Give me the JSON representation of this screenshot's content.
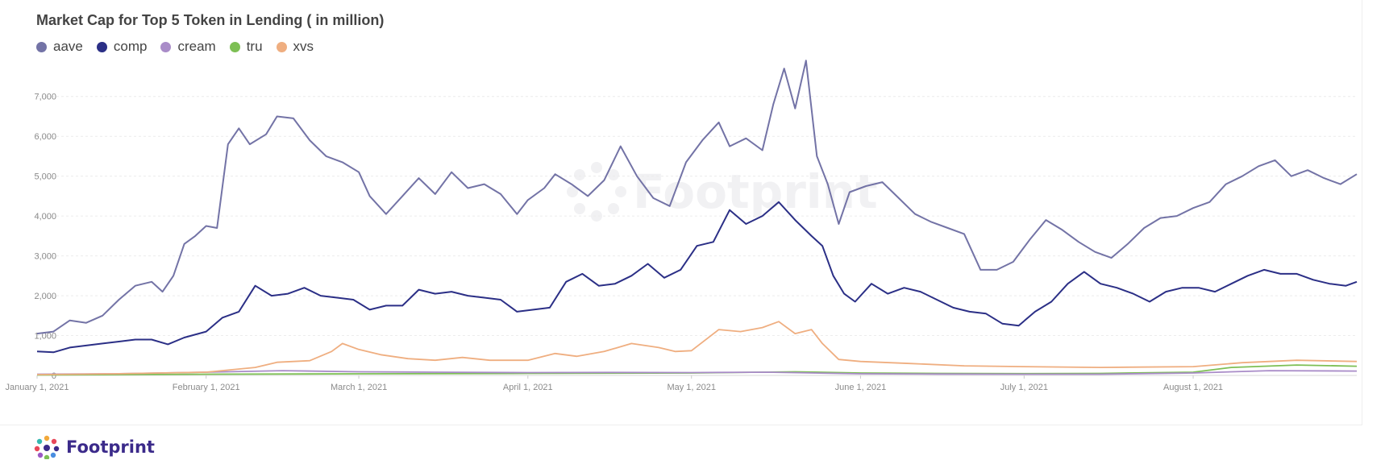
{
  "chart_data": {
    "type": "line",
    "title": "Market Cap for Top 5 Token in Lending ( in million)",
    "xlabel": "",
    "ylabel": "",
    "x_range": [
      "2021-01-01",
      "2021-08-31"
    ],
    "ylim": [
      0,
      7500
    ],
    "y_ticks": [
      0,
      1000,
      2000,
      3000,
      4000,
      5000,
      6000,
      7000
    ],
    "y_tick_labels": [
      "0",
      "1,000",
      "2,000",
      "3,000",
      "4,000",
      "5,000",
      "6,000",
      "7,000"
    ],
    "x_ticks": [
      {
        "date": "2021-01-01",
        "label": "January 1, 2021"
      },
      {
        "date": "2021-02-01",
        "label": "February 1, 2021"
      },
      {
        "date": "2021-03-01",
        "label": "March 1, 2021"
      },
      {
        "date": "2021-04-01",
        "label": "April 1, 2021"
      },
      {
        "date": "2021-05-01",
        "label": "May 1, 2021"
      },
      {
        "date": "2021-06-01",
        "label": "June 1, 2021"
      },
      {
        "date": "2021-07-01",
        "label": "July 1, 2021"
      },
      {
        "date": "2021-08-01",
        "label": "August 1, 2021"
      }
    ],
    "grid": "horizontal-dashed",
    "legend_position": "top-left",
    "series": [
      {
        "name": "aave",
        "color": "#7373a6",
        "points": [
          [
            "2021-01-01",
            1050
          ],
          [
            "2021-01-04",
            1100
          ],
          [
            "2021-01-07",
            1380
          ],
          [
            "2021-01-10",
            1320
          ],
          [
            "2021-01-13",
            1500
          ],
          [
            "2021-01-16",
            1900
          ],
          [
            "2021-01-19",
            2250
          ],
          [
            "2021-01-22",
            2350
          ],
          [
            "2021-01-24",
            2100
          ],
          [
            "2021-01-26",
            2500
          ],
          [
            "2021-01-28",
            3300
          ],
          [
            "2021-01-30",
            3500
          ],
          [
            "2021-02-01",
            3750
          ],
          [
            "2021-02-03",
            3700
          ],
          [
            "2021-02-05",
            5800
          ],
          [
            "2021-02-07",
            6200
          ],
          [
            "2021-02-09",
            5800
          ],
          [
            "2021-02-12",
            6050
          ],
          [
            "2021-02-14",
            6500
          ],
          [
            "2021-02-17",
            6450
          ],
          [
            "2021-02-20",
            5900
          ],
          [
            "2021-02-23",
            5500
          ],
          [
            "2021-02-26",
            5350
          ],
          [
            "2021-03-01",
            5100
          ],
          [
            "2021-03-03",
            4500
          ],
          [
            "2021-03-06",
            4050
          ],
          [
            "2021-03-09",
            4500
          ],
          [
            "2021-03-12",
            4950
          ],
          [
            "2021-03-15",
            4550
          ],
          [
            "2021-03-18",
            5100
          ],
          [
            "2021-03-21",
            4700
          ],
          [
            "2021-03-24",
            4800
          ],
          [
            "2021-03-27",
            4550
          ],
          [
            "2021-03-30",
            4050
          ],
          [
            "2021-04-01",
            4400
          ],
          [
            "2021-04-04",
            4700
          ],
          [
            "2021-04-06",
            5050
          ],
          [
            "2021-04-09",
            4800
          ],
          [
            "2021-04-12",
            4500
          ],
          [
            "2021-04-15",
            4900
          ],
          [
            "2021-04-18",
            5750
          ],
          [
            "2021-04-21",
            5000
          ],
          [
            "2021-04-24",
            4450
          ],
          [
            "2021-04-27",
            4250
          ],
          [
            "2021-04-30",
            5350
          ],
          [
            "2021-05-03",
            5900
          ],
          [
            "2021-05-06",
            6350
          ],
          [
            "2021-05-08",
            5750
          ],
          [
            "2021-05-11",
            5950
          ],
          [
            "2021-05-14",
            5650
          ],
          [
            "2021-05-16",
            6800
          ],
          [
            "2021-05-18",
            7700
          ],
          [
            "2021-05-20",
            6700
          ],
          [
            "2021-05-22",
            7900
          ],
          [
            "2021-05-24",
            5500
          ],
          [
            "2021-05-26",
            4800
          ],
          [
            "2021-05-28",
            3800
          ],
          [
            "2021-05-30",
            4600
          ],
          [
            "2021-06-02",
            4750
          ],
          [
            "2021-06-05",
            4850
          ],
          [
            "2021-06-08",
            4450
          ],
          [
            "2021-06-11",
            4050
          ],
          [
            "2021-06-14",
            3850
          ],
          [
            "2021-06-17",
            3700
          ],
          [
            "2021-06-20",
            3550
          ],
          [
            "2021-06-23",
            2650
          ],
          [
            "2021-06-26",
            2650
          ],
          [
            "2021-06-29",
            2850
          ],
          [
            "2021-07-02",
            3400
          ],
          [
            "2021-07-05",
            3900
          ],
          [
            "2021-07-08",
            3650
          ],
          [
            "2021-07-11",
            3350
          ],
          [
            "2021-07-14",
            3100
          ],
          [
            "2021-07-17",
            2950
          ],
          [
            "2021-07-20",
            3300
          ],
          [
            "2021-07-23",
            3700
          ],
          [
            "2021-07-26",
            3950
          ],
          [
            "2021-07-29",
            4000
          ],
          [
            "2021-08-01",
            4200
          ],
          [
            "2021-08-04",
            4350
          ],
          [
            "2021-08-07",
            4800
          ],
          [
            "2021-08-10",
            5000
          ],
          [
            "2021-08-13",
            5250
          ],
          [
            "2021-08-16",
            5400
          ],
          [
            "2021-08-19",
            5000
          ],
          [
            "2021-08-22",
            5150
          ],
          [
            "2021-08-25",
            4950
          ],
          [
            "2021-08-28",
            4800
          ],
          [
            "2021-08-31",
            5050
          ]
        ]
      },
      {
        "name": "comp",
        "color": "#2b2f86",
        "points": [
          [
            "2021-01-01",
            600
          ],
          [
            "2021-01-04",
            580
          ],
          [
            "2021-01-07",
            700
          ],
          [
            "2021-01-10",
            750
          ],
          [
            "2021-01-13",
            800
          ],
          [
            "2021-01-16",
            850
          ],
          [
            "2021-01-19",
            900
          ],
          [
            "2021-01-22",
            900
          ],
          [
            "2021-01-25",
            780
          ],
          [
            "2021-01-28",
            950
          ],
          [
            "2021-02-01",
            1100
          ],
          [
            "2021-02-04",
            1450
          ],
          [
            "2021-02-07",
            1600
          ],
          [
            "2021-02-10",
            2250
          ],
          [
            "2021-02-13",
            2000
          ],
          [
            "2021-02-16",
            2050
          ],
          [
            "2021-02-19",
            2200
          ],
          [
            "2021-02-22",
            2000
          ],
          [
            "2021-02-25",
            1950
          ],
          [
            "2021-02-28",
            1900
          ],
          [
            "2021-03-03",
            1650
          ],
          [
            "2021-03-06",
            1750
          ],
          [
            "2021-03-09",
            1750
          ],
          [
            "2021-03-12",
            2150
          ],
          [
            "2021-03-15",
            2050
          ],
          [
            "2021-03-18",
            2100
          ],
          [
            "2021-03-21",
            2000
          ],
          [
            "2021-03-24",
            1950
          ],
          [
            "2021-03-27",
            1900
          ],
          [
            "2021-03-30",
            1600
          ],
          [
            "2021-04-02",
            1650
          ],
          [
            "2021-04-05",
            1700
          ],
          [
            "2021-04-08",
            2350
          ],
          [
            "2021-04-11",
            2550
          ],
          [
            "2021-04-14",
            2250
          ],
          [
            "2021-04-17",
            2300
          ],
          [
            "2021-04-20",
            2500
          ],
          [
            "2021-04-23",
            2800
          ],
          [
            "2021-04-26",
            2450
          ],
          [
            "2021-04-29",
            2650
          ],
          [
            "2021-05-02",
            3250
          ],
          [
            "2021-05-05",
            3350
          ],
          [
            "2021-05-08",
            4150
          ],
          [
            "2021-05-11",
            3800
          ],
          [
            "2021-05-14",
            4000
          ],
          [
            "2021-05-17",
            4350
          ],
          [
            "2021-05-20",
            3900
          ],
          [
            "2021-05-23",
            3500
          ],
          [
            "2021-05-25",
            3250
          ],
          [
            "2021-05-27",
            2500
          ],
          [
            "2021-05-29",
            2050
          ],
          [
            "2021-05-31",
            1850
          ],
          [
            "2021-06-03",
            2300
          ],
          [
            "2021-06-06",
            2050
          ],
          [
            "2021-06-09",
            2200
          ],
          [
            "2021-06-12",
            2100
          ],
          [
            "2021-06-15",
            1900
          ],
          [
            "2021-06-18",
            1700
          ],
          [
            "2021-06-21",
            1600
          ],
          [
            "2021-06-24",
            1550
          ],
          [
            "2021-06-27",
            1300
          ],
          [
            "2021-06-30",
            1250
          ],
          [
            "2021-07-03",
            1600
          ],
          [
            "2021-07-06",
            1850
          ],
          [
            "2021-07-09",
            2300
          ],
          [
            "2021-07-12",
            2600
          ],
          [
            "2021-07-15",
            2300
          ],
          [
            "2021-07-18",
            2200
          ],
          [
            "2021-07-21",
            2050
          ],
          [
            "2021-07-24",
            1850
          ],
          [
            "2021-07-27",
            2100
          ],
          [
            "2021-07-30",
            2200
          ],
          [
            "2021-08-02",
            2200
          ],
          [
            "2021-08-05",
            2100
          ],
          [
            "2021-08-08",
            2300
          ],
          [
            "2021-08-11",
            2500
          ],
          [
            "2021-08-14",
            2650
          ],
          [
            "2021-08-17",
            2550
          ],
          [
            "2021-08-20",
            2550
          ],
          [
            "2021-08-23",
            2400
          ],
          [
            "2021-08-26",
            2300
          ],
          [
            "2021-08-29",
            2250
          ],
          [
            "2021-08-31",
            2350
          ]
        ]
      },
      {
        "name": "cream",
        "color": "#a98cc8",
        "points": [
          [
            "2021-01-01",
            30
          ],
          [
            "2021-01-15",
            40
          ],
          [
            "2021-02-01",
            80
          ],
          [
            "2021-02-15",
            120
          ],
          [
            "2021-03-01",
            90
          ],
          [
            "2021-03-15",
            80
          ],
          [
            "2021-04-01",
            70
          ],
          [
            "2021-04-15",
            75
          ],
          [
            "2021-05-01",
            70
          ],
          [
            "2021-05-15",
            80
          ],
          [
            "2021-06-01",
            40
          ],
          [
            "2021-06-15",
            35
          ],
          [
            "2021-07-01",
            30
          ],
          [
            "2021-07-15",
            30
          ],
          [
            "2021-08-01",
            60
          ],
          [
            "2021-08-15",
            120
          ],
          [
            "2021-08-31",
            110
          ]
        ]
      },
      {
        "name": "tru",
        "color": "#7dbf54",
        "points": [
          [
            "2021-01-01",
            10
          ],
          [
            "2021-02-01",
            30
          ],
          [
            "2021-03-01",
            40
          ],
          [
            "2021-04-01",
            50
          ],
          [
            "2021-05-01",
            60
          ],
          [
            "2021-05-20",
            90
          ],
          [
            "2021-06-01",
            60
          ],
          [
            "2021-06-15",
            50
          ],
          [
            "2021-07-01",
            45
          ],
          [
            "2021-07-15",
            50
          ],
          [
            "2021-08-01",
            80
          ],
          [
            "2021-08-08",
            200
          ],
          [
            "2021-08-20",
            260
          ],
          [
            "2021-08-31",
            230
          ]
        ]
      },
      {
        "name": "xvs",
        "color": "#efae80",
        "points": [
          [
            "2021-01-01",
            20
          ],
          [
            "2021-01-15",
            40
          ],
          [
            "2021-02-01",
            80
          ],
          [
            "2021-02-10",
            200
          ],
          [
            "2021-02-14",
            330
          ],
          [
            "2021-02-20",
            370
          ],
          [
            "2021-02-24",
            600
          ],
          [
            "2021-02-26",
            800
          ],
          [
            "2021-03-01",
            650
          ],
          [
            "2021-03-05",
            520
          ],
          [
            "2021-03-10",
            420
          ],
          [
            "2021-03-15",
            380
          ],
          [
            "2021-03-20",
            450
          ],
          [
            "2021-03-25",
            380
          ],
          [
            "2021-04-01",
            380
          ],
          [
            "2021-04-06",
            550
          ],
          [
            "2021-04-10",
            480
          ],
          [
            "2021-04-15",
            600
          ],
          [
            "2021-04-20",
            800
          ],
          [
            "2021-04-25",
            700
          ],
          [
            "2021-04-28",
            600
          ],
          [
            "2021-05-01",
            620
          ],
          [
            "2021-05-06",
            1150
          ],
          [
            "2021-05-10",
            1100
          ],
          [
            "2021-05-14",
            1200
          ],
          [
            "2021-05-17",
            1350
          ],
          [
            "2021-05-20",
            1050
          ],
          [
            "2021-05-23",
            1150
          ],
          [
            "2021-05-25",
            800
          ],
          [
            "2021-05-28",
            400
          ],
          [
            "2021-06-01",
            350
          ],
          [
            "2021-06-10",
            300
          ],
          [
            "2021-06-20",
            240
          ],
          [
            "2021-07-01",
            220
          ],
          [
            "2021-07-15",
            200
          ],
          [
            "2021-08-01",
            220
          ],
          [
            "2021-08-10",
            320
          ],
          [
            "2021-08-20",
            380
          ],
          [
            "2021-08-31",
            350
          ]
        ]
      }
    ]
  },
  "watermark": {
    "text": "Footprint"
  },
  "brand": {
    "name": "Footprint"
  }
}
